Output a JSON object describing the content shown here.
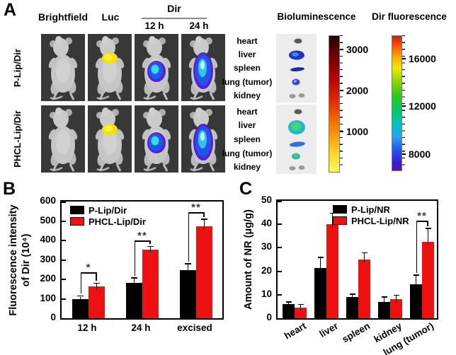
{
  "panelA": {
    "label": "A",
    "column_headers": {
      "brightfield": "Brightfield",
      "luc": "Luc",
      "dir": "Dir",
      "dir_12h": "12 h",
      "dir_24h": "24 h"
    },
    "row_labels": [
      "P-Lip/Dir",
      "PHCL-Lip/Dir"
    ],
    "rows": [
      {
        "name": "P-Lip/Dir",
        "overlays": [
          "none",
          "luc",
          "dir12",
          "dir24"
        ]
      },
      {
        "name": "PHCL-Lip/Dir",
        "overlays": [
          "none",
          "luc",
          "dir12",
          "dir24"
        ]
      }
    ],
    "organ_labels": [
      "heart",
      "liver",
      "spleen",
      "lung (tumor)",
      "kidney"
    ],
    "bioluminescence_scale": {
      "title": "Bioluminescence",
      "tick_labels": [
        "3000",
        "2000",
        "1000"
      ]
    },
    "dir_fluorescence_scale": {
      "title": "Dir fluorescence",
      "tick_labels": [
        "16000",
        "12000",
        "8000"
      ]
    }
  },
  "chart_data": [
    {
      "panel": "B",
      "type": "bar",
      "categories": [
        "12 h",
        "24 h",
        "excised"
      ],
      "series": [
        {
          "name": "P-Lip/Dir",
          "color": "#000000",
          "values": [
            98,
            183,
            248
          ],
          "errors": [
            13,
            22,
            30
          ]
        },
        {
          "name": "PHCL-Lip/Dir",
          "color": "#ed1111",
          "values": [
            165,
            352,
            472
          ],
          "errors": [
            13,
            15,
            35
          ]
        }
      ],
      "ylabel": "Fluorescence intensity of Dir (10⁴)",
      "ylabel_lines": [
        "Fluorescence intensity",
        "of Dir (10⁴)"
      ],
      "ylim": [
        0,
        600
      ],
      "yticks": [
        0,
        100,
        200,
        300,
        400,
        500,
        600
      ],
      "grid": false,
      "legend_position": "top-left",
      "significance": [
        {
          "group": 0,
          "label": "*",
          "bracket_y": 235
        },
        {
          "group": 1,
          "label": "**",
          "bracket_y": 400
        },
        {
          "group": 2,
          "label": "**",
          "bracket_y": 545
        }
      ]
    },
    {
      "panel": "C",
      "type": "bar",
      "categories": [
        "heart",
        "liver",
        "spleen",
        "kidney",
        "lung (tumor)"
      ],
      "series": [
        {
          "name": "P-Lip/NR",
          "color": "#000000",
          "values": [
            6,
            21.5,
            9,
            7,
            14.5
          ],
          "errors": [
            0.7,
            4.2,
            1,
            1.8,
            3.7
          ]
        },
        {
          "name": "PHCL-Lip/NR",
          "color": "#ed1111",
          "values": [
            4.5,
            40,
            25,
            8,
            32.5
          ],
          "errors": [
            1.2,
            4.5,
            2.7,
            1.5,
            5.5
          ]
        }
      ],
      "ylabel": "Amount of NR (μg/g)",
      "ylabel_lines": [
        "Amount of NR (μg/g)"
      ],
      "ylim": [
        0,
        50
      ],
      "yticks": [
        0,
        10,
        20,
        30,
        40,
        50
      ],
      "grid": false,
      "legend_position": "top-center",
      "significance": [
        {
          "group": 4,
          "label": "**",
          "bracket_y": 41.5
        }
      ]
    }
  ]
}
